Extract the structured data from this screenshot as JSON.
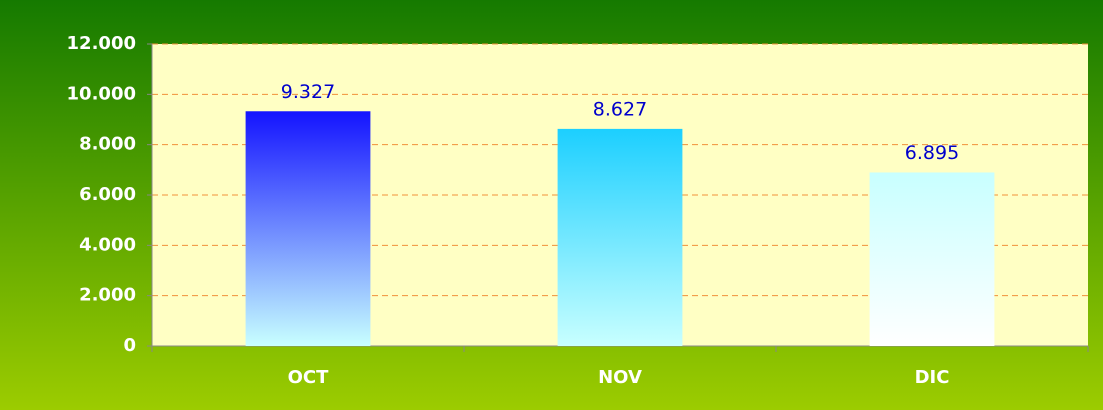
{
  "chart_data": {
    "type": "bar",
    "categories": [
      "OCT",
      "NOV",
      "DIC"
    ],
    "values": [
      9327,
      8627,
      6895
    ],
    "value_labels": [
      "9.327",
      "8.627",
      "6.895"
    ],
    "colors": [
      [
        "#1414ff",
        "#c8ffff"
      ],
      [
        "#1ccfff",
        "#c8ffff"
      ],
      [
        "#c8ffff",
        "#ffffff"
      ]
    ],
    "ylim": [
      0,
      12000
    ],
    "yticks": [
      0,
      {
        "value": 2000,
        "label": "2.000"
      },
      {
        "value": 4000,
        "label": "4.000"
      },
      {
        "value": 6000,
        "label": "6.000"
      },
      {
        "value": 8000,
        "label": "8.000"
      },
      {
        "value": 10000,
        "label": "10.000"
      },
      {
        "value": 12000,
        "label": "12.000"
      }
    ],
    "grid": true
  }
}
